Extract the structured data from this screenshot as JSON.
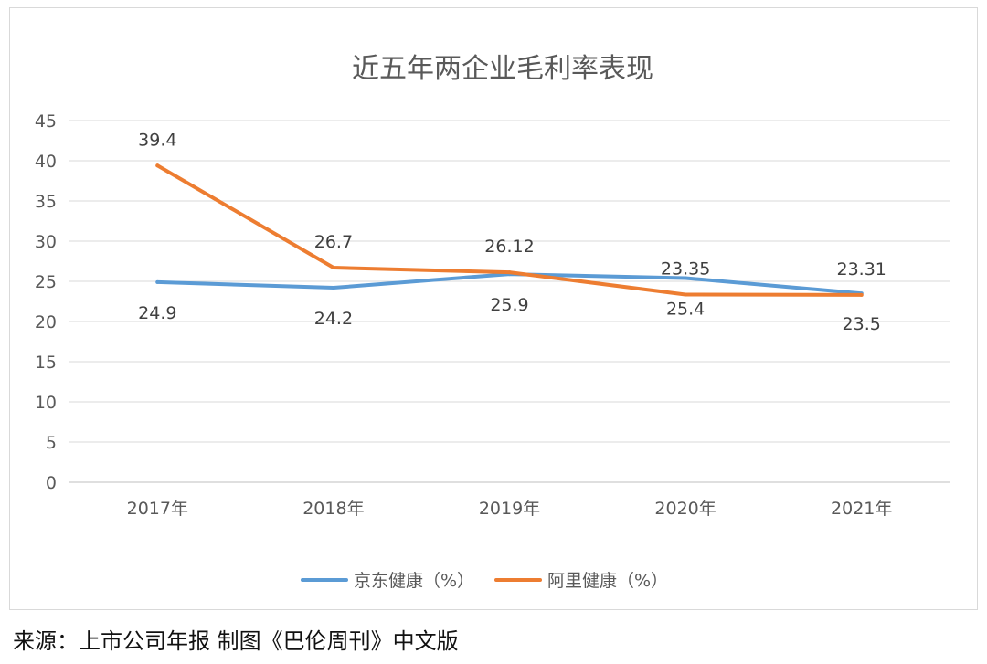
{
  "chart_data": {
    "type": "line",
    "title": "近五年两企业毛利率表现",
    "categories": [
      "2017年",
      "2018年",
      "2019年",
      "2020年",
      "2021年"
    ],
    "ylim": [
      0,
      45
    ],
    "yticks": [
      "0",
      "5",
      "10",
      "15",
      "20",
      "25",
      "30",
      "35",
      "40",
      "45"
    ],
    "grid": true,
    "legend_position": "bottom",
    "series": [
      {
        "name": "京东健康（%）",
        "color": "#5b9bd5",
        "values": [
          24.9,
          24.2,
          25.9,
          25.4,
          23.5
        ],
        "labels": [
          "24.9",
          "24.2",
          "25.9",
          "25.4",
          "23.5"
        ],
        "label_side": "below"
      },
      {
        "name": "阿里健康（%）",
        "color": "#ed7d31",
        "values": [
          39.4,
          26.7,
          26.12,
          23.35,
          23.31
        ],
        "labels": [
          "39.4",
          "26.7",
          "26.12",
          "23.35",
          "23.31"
        ],
        "label_side": "above"
      }
    ]
  },
  "source_note": "来源：上市公司年报 制图《巴伦周刊》中文版"
}
